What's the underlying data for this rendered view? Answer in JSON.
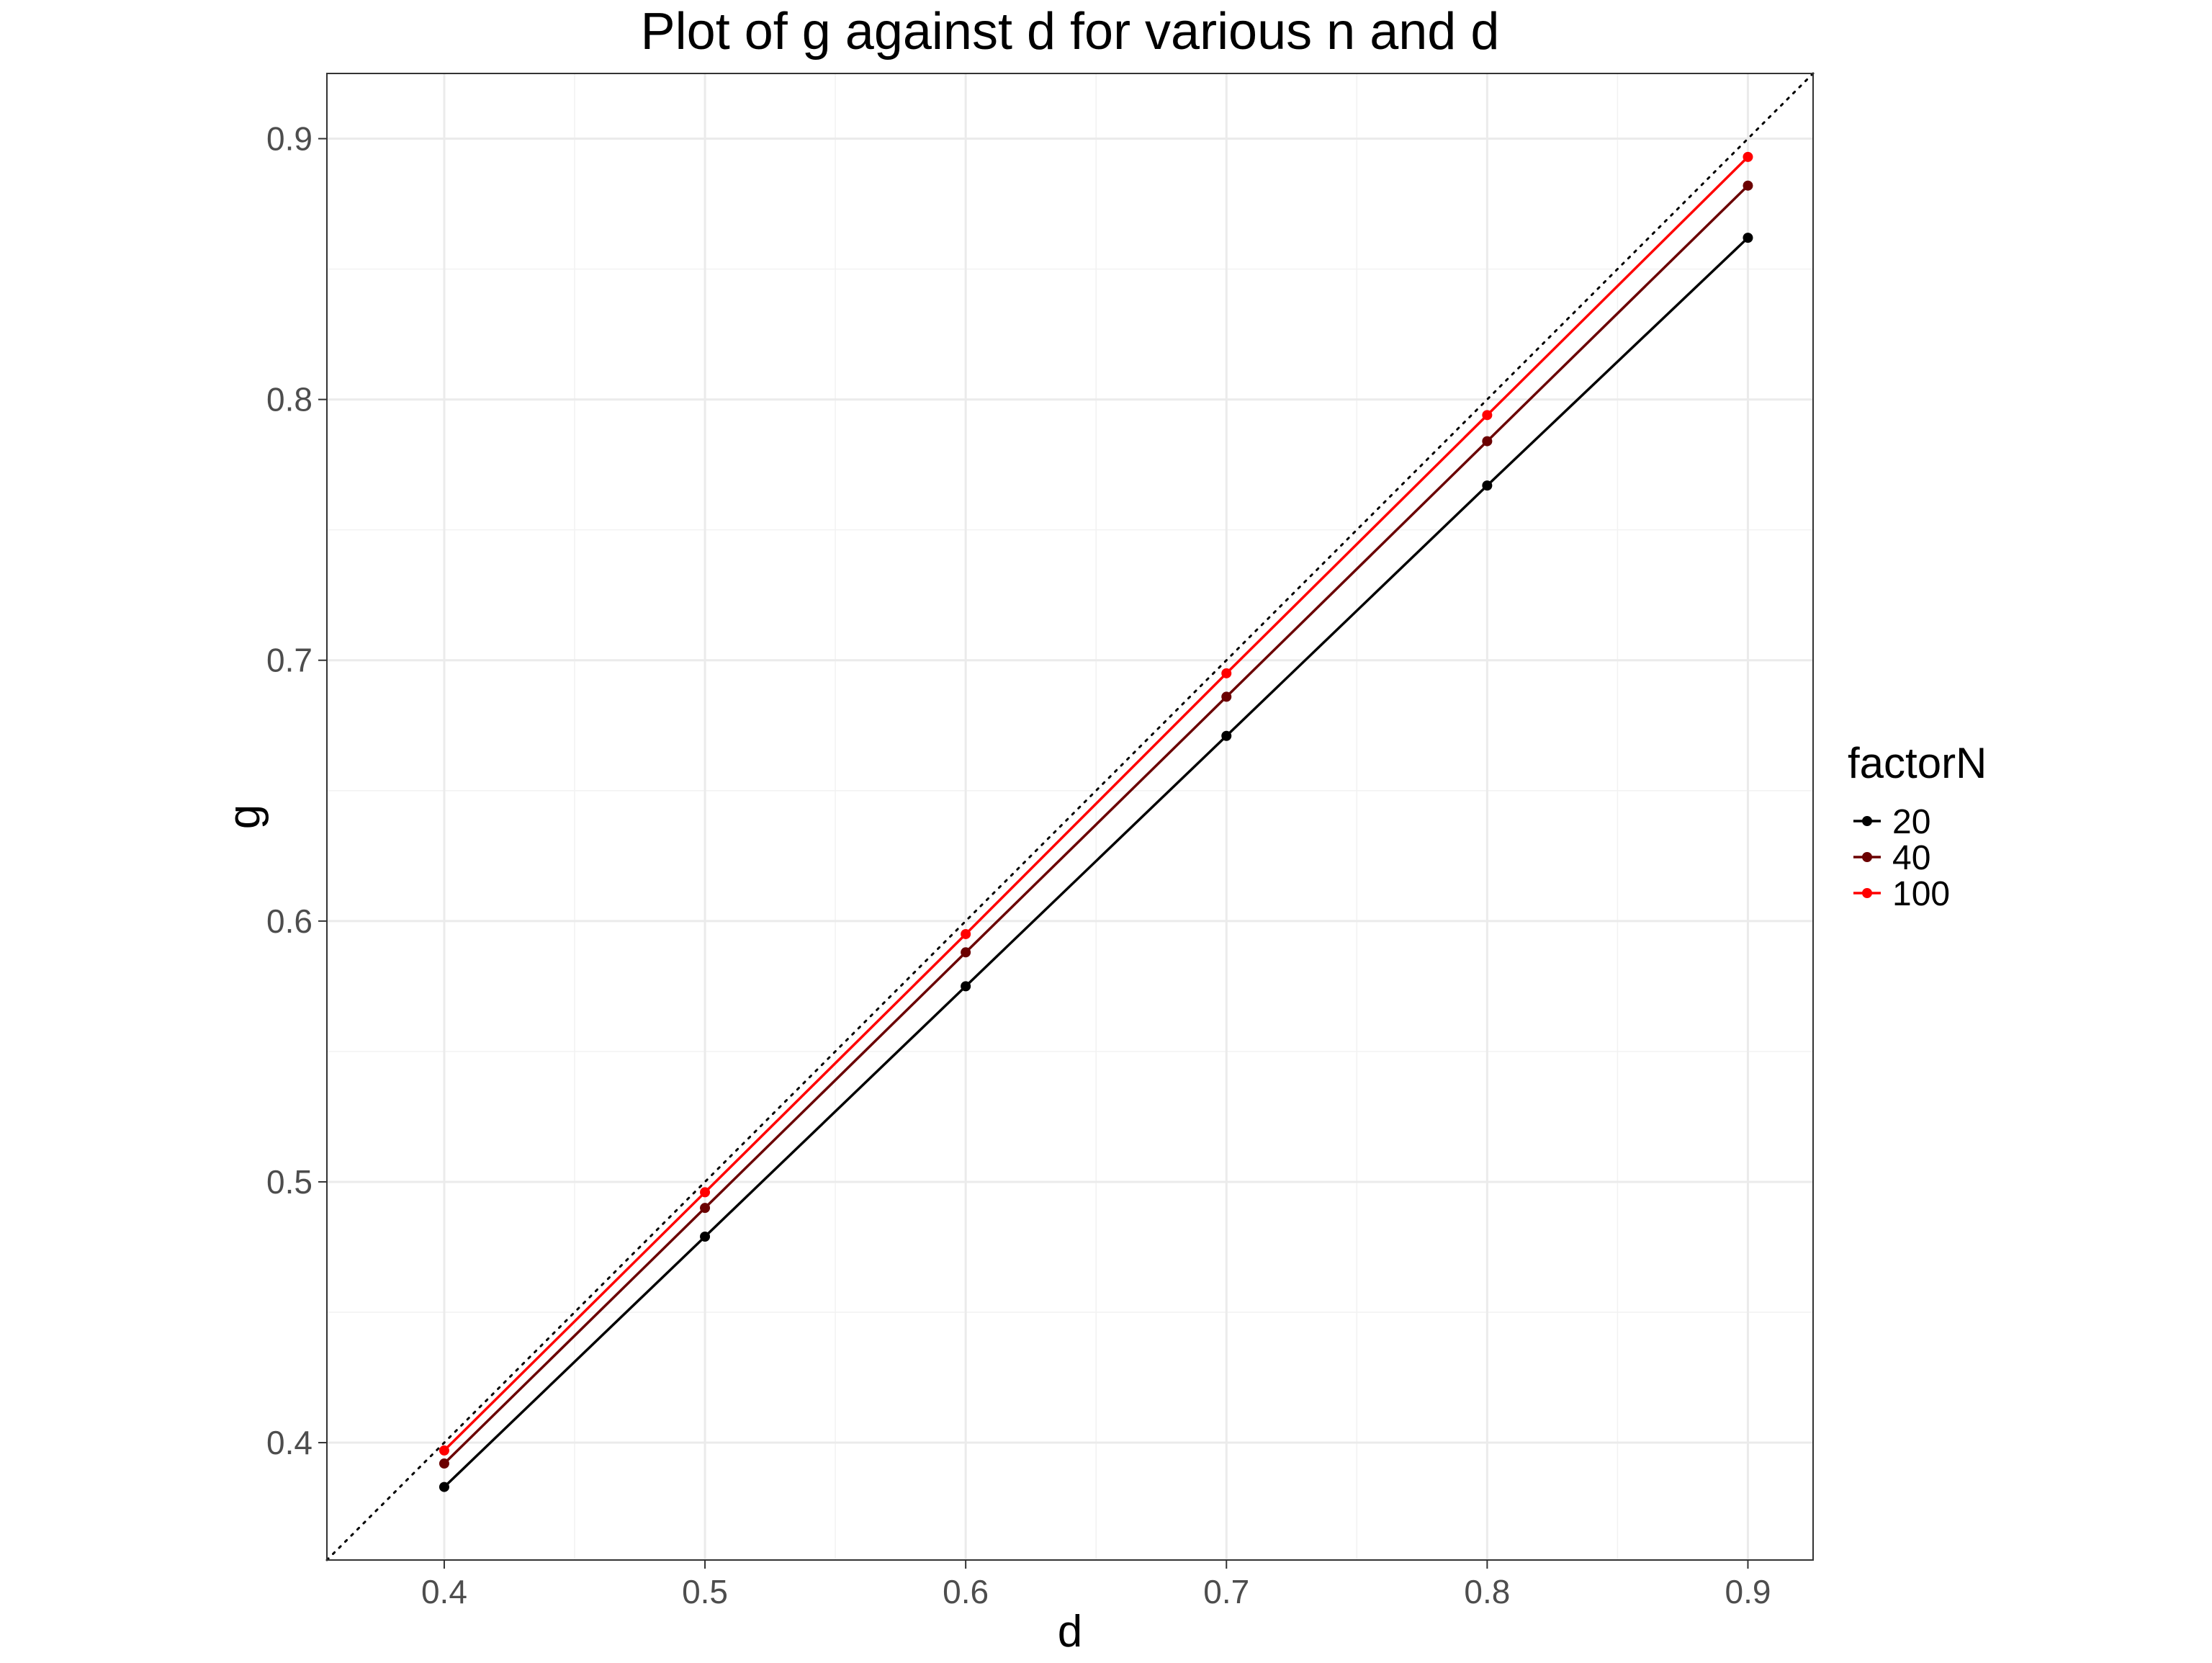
{
  "chart_data": {
    "type": "line",
    "title": "Plot of g against d for various n and d",
    "xlabel": "d",
    "ylabel": "g",
    "xlim": [
      0.355,
      0.925
    ],
    "ylim": [
      0.355,
      0.925
    ],
    "x_ticks": [
      0.4,
      0.5,
      0.6,
      0.7,
      0.8,
      0.9
    ],
    "y_ticks": [
      0.4,
      0.5,
      0.6,
      0.7,
      0.8,
      0.9
    ],
    "x_tick_labels": [
      "0.4",
      "0.5",
      "0.6",
      "0.7",
      "0.8",
      "0.9"
    ],
    "y_tick_labels": [
      "0.4",
      "0.5",
      "0.6",
      "0.7",
      "0.8",
      "0.9"
    ],
    "grid": true,
    "reference_line": {
      "style": "dotted",
      "slope": 1,
      "intercept": 0,
      "color": "#000000"
    },
    "x": [
      0.4,
      0.5,
      0.6,
      0.7,
      0.8,
      0.9
    ],
    "legend": {
      "title": "factorN",
      "position": "right"
    },
    "series": [
      {
        "name": "20",
        "color": "#000000",
        "values": [
          0.383,
          0.479,
          0.575,
          0.671,
          0.767,
          0.862
        ]
      },
      {
        "name": "40",
        "color": "#6b0000",
        "values": [
          0.392,
          0.49,
          0.588,
          0.686,
          0.784,
          0.882
        ]
      },
      {
        "name": "100",
        "color": "#ff0000",
        "values": [
          0.397,
          0.496,
          0.595,
          0.695,
          0.794,
          0.893
        ]
      }
    ]
  }
}
